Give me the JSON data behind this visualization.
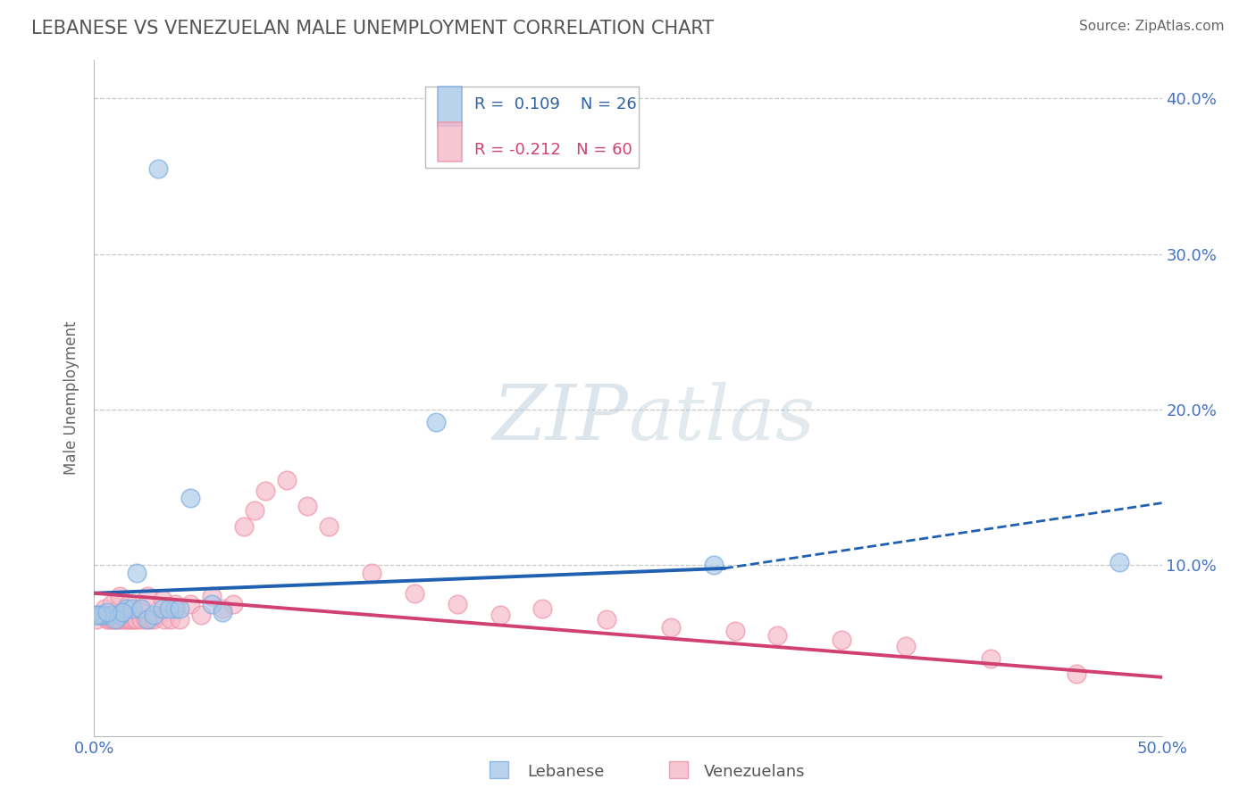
{
  "title": "LEBANESE VS VENEZUELAN MALE UNEMPLOYMENT CORRELATION CHART",
  "source": "Source: ZipAtlas.com",
  "ylabel": "Male Unemployment",
  "watermark_zip": "ZIP",
  "watermark_atlas": "atlas",
  "legend_blue_r": "R =  0.109",
  "legend_blue_n": "N = 26",
  "legend_pink_r": "R = -0.212",
  "legend_pink_n": "N = 60",
  "ytick_values": [
    0.0,
    0.1,
    0.2,
    0.3,
    0.4
  ],
  "xlim": [
    0.0,
    0.5
  ],
  "ylim": [
    -0.01,
    0.425
  ],
  "blue_color": "#a8c8e8",
  "blue_edge_color": "#7aade0",
  "pink_color": "#f5b8c8",
  "pink_edge_color": "#f090a8",
  "blue_line_color": "#2060b0",
  "pink_line_color": "#d04070",
  "background_color": "#ffffff",
  "grid_color": "#c8c8c8",
  "blue_points_x": [
    0.03,
    0.005,
    0.002,
    0.008,
    0.012,
    0.015,
    0.018,
    0.022,
    0.025,
    0.01,
    0.013,
    0.028,
    0.032,
    0.038,
    0.16,
    0.29,
    0.48,
    0.045,
    0.055,
    0.06,
    0.003,
    0.001,
    0.006,
    0.02,
    0.035,
    0.04
  ],
  "blue_points_y": [
    0.355,
    0.068,
    0.068,
    0.068,
    0.068,
    0.072,
    0.072,
    0.072,
    0.065,
    0.065,
    0.07,
    0.068,
    0.072,
    0.072,
    0.192,
    0.1,
    0.102,
    0.143,
    0.075,
    0.07,
    0.068,
    0.068,
    0.07,
    0.095,
    0.072,
    0.072
  ],
  "pink_points_x": [
    0.001,
    0.002,
    0.003,
    0.004,
    0.005,
    0.006,
    0.007,
    0.008,
    0.009,
    0.01,
    0.011,
    0.012,
    0.013,
    0.014,
    0.015,
    0.016,
    0.017,
    0.018,
    0.019,
    0.02,
    0.022,
    0.024,
    0.026,
    0.028,
    0.03,
    0.033,
    0.036,
    0.04,
    0.045,
    0.05,
    0.055,
    0.06,
    0.065,
    0.07,
    0.075,
    0.08,
    0.09,
    0.1,
    0.11,
    0.13,
    0.15,
    0.17,
    0.19,
    0.21,
    0.24,
    0.27,
    0.3,
    0.32,
    0.35,
    0.38,
    0.42,
    0.46,
    0.005,
    0.008,
    0.012,
    0.016,
    0.021,
    0.025,
    0.032,
    0.038
  ],
  "pink_points_y": [
    0.065,
    0.068,
    0.068,
    0.068,
    0.068,
    0.065,
    0.065,
    0.065,
    0.065,
    0.068,
    0.065,
    0.065,
    0.068,
    0.065,
    0.065,
    0.065,
    0.065,
    0.065,
    0.065,
    0.065,
    0.065,
    0.065,
    0.065,
    0.065,
    0.068,
    0.065,
    0.065,
    0.065,
    0.075,
    0.068,
    0.08,
    0.072,
    0.075,
    0.125,
    0.135,
    0.148,
    0.155,
    0.138,
    0.125,
    0.095,
    0.082,
    0.075,
    0.068,
    0.072,
    0.065,
    0.06,
    0.058,
    0.055,
    0.052,
    0.048,
    0.04,
    0.03,
    0.072,
    0.075,
    0.08,
    0.075,
    0.072,
    0.08,
    0.078,
    0.075
  ],
  "blue_trend_start_x": 0.0,
  "blue_trend_start_y": 0.082,
  "blue_trend_solid_end_x": 0.295,
  "blue_trend_solid_end_y": 0.098,
  "blue_trend_end_x": 0.5,
  "blue_trend_end_y": 0.14,
  "pink_trend_start_x": 0.0,
  "pink_trend_start_y": 0.082,
  "pink_trend_end_x": 0.5,
  "pink_trend_end_y": 0.028
}
